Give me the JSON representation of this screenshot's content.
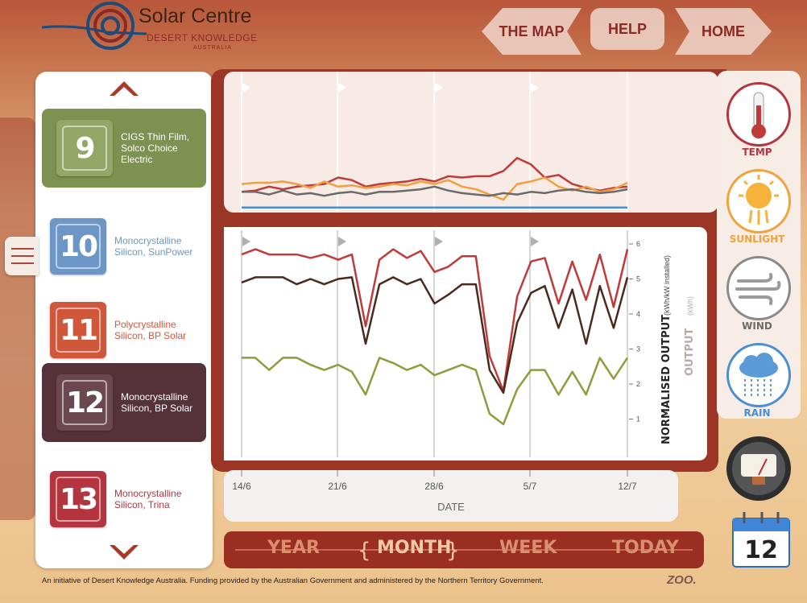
{
  "header": {
    "logo_title": "Solar Centre",
    "logo_sub": "DESERT KNOWLEDGE",
    "logo_sub2": "AUSTRALIA",
    "nav": [
      {
        "label": "THE MAP"
      },
      {
        "label": "HELP"
      },
      {
        "label": "HOME"
      }
    ]
  },
  "technologies": [
    {
      "number": "9",
      "name": "CIGS Thin Film, Solco Choice Electric",
      "color": "#7d9151",
      "selected": true
    },
    {
      "number": "10",
      "name": "Monocrystalline Silicon, SunPower",
      "color": "#6b96c6",
      "selected": false
    },
    {
      "number": "11",
      "name": "Polycrystalline Silicon, BP Solar",
      "color": "#d0573a",
      "selected": false
    },
    {
      "number": "12",
      "name": "Monocrystalline Silicon, BP Solar",
      "color": "#55323a",
      "selected": true
    },
    {
      "number": "13",
      "name": "Monocrystalline Silicon, Trina",
      "color": "#b4353f",
      "selected": false
    }
  ],
  "weather": [
    {
      "label": "TEMP",
      "icon": "thermometer-icon",
      "color": "#b4353f"
    },
    {
      "label": "SUNLIGHT",
      "icon": "sun-icon",
      "color": "#f2a23a"
    },
    {
      "label": "WIND",
      "icon": "wind-icon",
      "color": "#7a7a7a"
    },
    {
      "label": "RAIN",
      "icon": "rain-cloud-icon",
      "color": "#4a8fd0"
    }
  ],
  "periods": [
    {
      "label": "YEAR",
      "active": false
    },
    {
      "label": "MONTH",
      "active": true
    },
    {
      "label": "WEEK",
      "active": false
    },
    {
      "label": "TODAY",
      "active": false
    }
  ],
  "calendar_day": "12",
  "footer": "An initiative of Desert Knowledge Australia. Funding provided by the Australian Government and administered by the Northern Territory Government.",
  "brand": "ZOO.",
  "chart_data": [
    {
      "type": "line",
      "title": "",
      "x_tick_labels": [
        "14/6",
        "21/6",
        "28/6",
        "5/7",
        "12/7"
      ],
      "xlabel": "DATE",
      "ylabel": "NORMALISED OUTPUT",
      "ylabel_unit": "(kWh/kW installed)",
      "ylabel2": "OUTPUT",
      "ylabel2_unit": "(kWh)",
      "yticks": [
        1,
        2,
        3,
        4,
        5,
        6
      ],
      "ylim": [
        0,
        6.3
      ],
      "series": [
        {
          "color": "#c03a3a",
          "values": [
            5.7,
            5.85,
            5.7,
            5.7,
            5.7,
            5.6,
            5.7,
            5.55,
            5.7,
            3.65,
            5.55,
            5.85,
            5.6,
            5.8,
            5.2,
            5.35,
            5.65,
            5.65,
            2.8,
            1.8,
            4.5,
            5.5,
            5.6,
            4.3,
            5.5,
            4.4,
            5.7,
            4.2,
            5.85
          ]
        },
        {
          "color": "#4a2a1e",
          "values": [
            4.9,
            5.05,
            5.05,
            5.05,
            4.85,
            5.0,
            4.85,
            5.0,
            5.05,
            3.15,
            4.85,
            5.05,
            4.85,
            5.0,
            4.3,
            4.55,
            4.85,
            4.85,
            2.4,
            1.75,
            3.75,
            4.6,
            4.8,
            3.6,
            4.7,
            3.15,
            4.8,
            3.6,
            5.05
          ]
        },
        {
          "color": "#8a9e3e",
          "values": [
            2.75,
            2.75,
            2.4,
            2.75,
            2.75,
            2.55,
            2.4,
            2.55,
            2.35,
            1.7,
            2.75,
            2.6,
            2.4,
            2.55,
            2.25,
            2.4,
            2.55,
            2.4,
            1.15,
            0.85,
            1.85,
            2.4,
            2.4,
            1.7,
            2.35,
            1.7,
            2.75,
            2.15,
            2.75
          ]
        }
      ]
    },
    {
      "type": "line",
      "title": "",
      "x_tick_labels": [],
      "ylim": [
        0,
        1
      ],
      "series": [
        {
          "color": "#c03a3a",
          "values": [
            0.14,
            0.15,
            0.18,
            0.16,
            0.18,
            0.19,
            0.2,
            0.25,
            0.23,
            0.18,
            0.2,
            0.21,
            0.22,
            0.24,
            0.22,
            0.26,
            0.25,
            0.26,
            0.26,
            0.3,
            0.4,
            0.35,
            0.25,
            0.27,
            0.2,
            0.17,
            0.15,
            0.17,
            0.18
          ]
        },
        {
          "color": "#f0a040",
          "values": [
            0.2,
            0.21,
            0.21,
            0.22,
            0.2,
            0.17,
            0.22,
            0.18,
            0.19,
            0.17,
            0.18,
            0.2,
            0.19,
            0.22,
            0.2,
            0.23,
            0.18,
            0.16,
            0.12,
            0.08,
            0.2,
            0.22,
            0.25,
            0.18,
            0.15,
            0.18,
            0.14,
            0.16,
            0.21
          ]
        },
        {
          "color": "#6a6a6a",
          "values": [
            0.14,
            0.14,
            0.12,
            0.15,
            0.12,
            0.13,
            0.11,
            0.13,
            0.14,
            0.12,
            0.14,
            0.14,
            0.15,
            0.16,
            0.18,
            0.15,
            0.13,
            0.12,
            0.11,
            0.13,
            0.12,
            0.14,
            0.13,
            0.15,
            0.16,
            0.14,
            0.13,
            0.14,
            0.16
          ]
        },
        {
          "color": "#4a8fd0",
          "values": [
            0.02,
            0.02,
            0.02,
            0.02,
            0.02,
            0.02,
            0.02,
            0.02,
            0.02,
            0.02,
            0.02,
            0.02,
            0.02,
            0.02,
            0.02,
            0.02,
            0.02,
            0.02,
            0.02,
            0.02,
            0.02,
            0.02,
            0.02,
            0.02,
            0.02,
            0.02,
            0.02,
            0.02,
            0.02
          ]
        }
      ]
    }
  ]
}
